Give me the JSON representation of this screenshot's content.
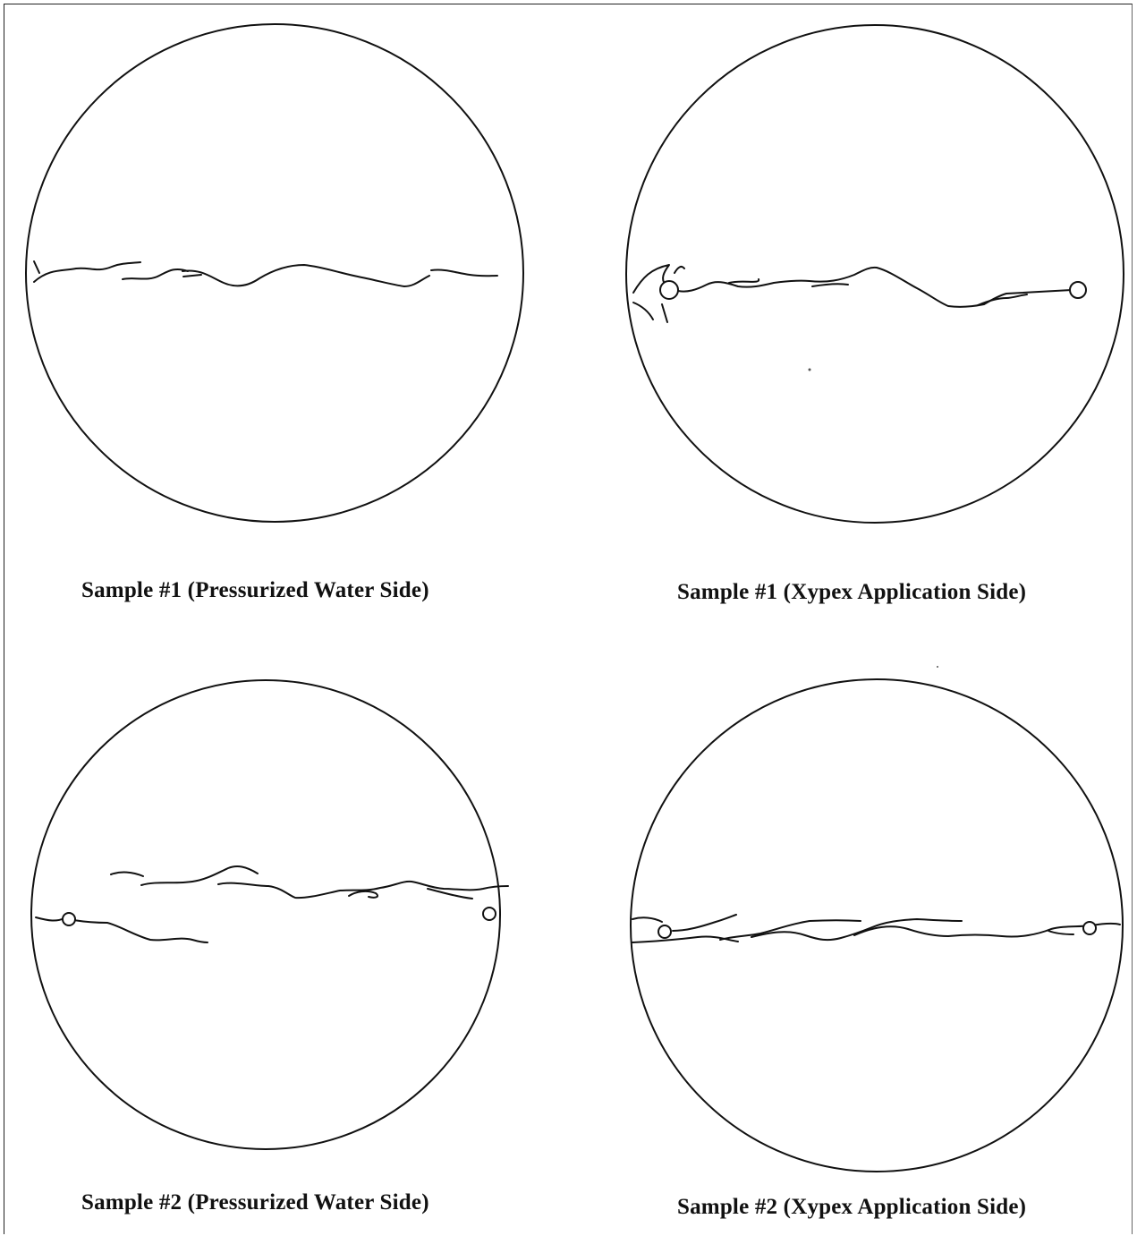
{
  "figure": {
    "panels": [
      {
        "id": "s1-water",
        "caption": "Sample #1 (Pressurized Water Side)"
      },
      {
        "id": "s1-xypex",
        "caption": "Sample #1 (Xypex Application Side)"
      },
      {
        "id": "s2-water",
        "caption": "Sample #2 (Pressurized Water Side)"
      },
      {
        "id": "s2-xypex",
        "caption": "Sample #2 (Xypex Application Side)"
      }
    ]
  }
}
